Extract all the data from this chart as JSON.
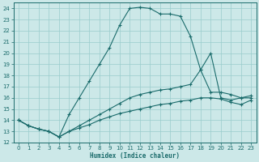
{
  "xlabel": "Humidex (Indice chaleur)",
  "background_color": "#cce8e8",
  "line_color": "#1a6b6b",
  "grid_color": "#99cccc",
  "ylim": [
    12,
    24.5
  ],
  "xlim": [
    -0.5,
    23.5
  ],
  "yticks": [
    12,
    13,
    14,
    15,
    16,
    17,
    18,
    19,
    20,
    21,
    22,
    23,
    24
  ],
  "xticks": [
    0,
    1,
    2,
    3,
    4,
    5,
    6,
    7,
    8,
    9,
    10,
    11,
    12,
    13,
    14,
    15,
    16,
    17,
    18,
    19,
    20,
    21,
    22,
    23
  ],
  "lines": [
    {
      "x": [
        0,
        1,
        2,
        3,
        4,
        5,
        6,
        7,
        8,
        9,
        10,
        11,
        12,
        13,
        14,
        15,
        16,
        17,
        18,
        19,
        20,
        21,
        22,
        23
      ],
      "y": [
        14.0,
        13.5,
        13.2,
        13.0,
        12.5,
        14.5,
        16.0,
        17.5,
        19.0,
        20.5,
        22.5,
        24.0,
        24.1,
        24.0,
        23.5,
        23.5,
        23.3,
        21.5,
        18.5,
        20.0,
        16.0,
        15.8,
        16.0,
        16.0
      ]
    },
    {
      "x": [
        0,
        1,
        2,
        3,
        4,
        5,
        6,
        7,
        8,
        9,
        10,
        11,
        12,
        13,
        14,
        15,
        16,
        17,
        18,
        19,
        20,
        21,
        22,
        23
      ],
      "y": [
        14.0,
        13.5,
        13.2,
        13.0,
        12.5,
        13.0,
        13.5,
        14.0,
        14.5,
        15.0,
        15.5,
        16.0,
        16.3,
        16.5,
        16.7,
        16.8,
        17.0,
        17.2,
        18.5,
        16.5,
        16.5,
        16.3,
        16.0,
        16.2
      ]
    },
    {
      "x": [
        0,
        1,
        2,
        3,
        4,
        5,
        6,
        7,
        8,
        9,
        10,
        11,
        12,
        13,
        14,
        15,
        16,
        17,
        18,
        19,
        20,
        21,
        22,
        23
      ],
      "y": [
        14.0,
        13.5,
        13.2,
        13.0,
        12.5,
        13.0,
        13.3,
        13.6,
        14.0,
        14.3,
        14.6,
        14.8,
        15.0,
        15.2,
        15.4,
        15.5,
        15.7,
        15.8,
        16.0,
        16.0,
        15.9,
        15.6,
        15.4,
        15.8
      ]
    }
  ]
}
